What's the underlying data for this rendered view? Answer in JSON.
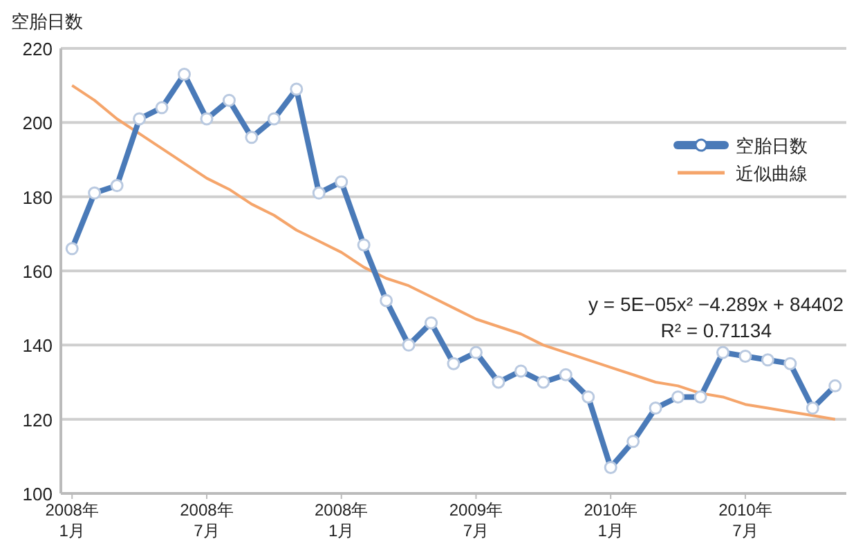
{
  "chart_data": {
    "type": "line",
    "ylabel": "空胎日数",
    "categories": [
      "2008年\n1月",
      null,
      null,
      null,
      null,
      null,
      "2008年\n7月",
      null,
      null,
      null,
      null,
      null,
      "2008年\n1月",
      null,
      null,
      null,
      null,
      null,
      "2009年\n7月",
      null,
      null,
      null,
      null,
      null,
      "2010年\n1月",
      null,
      null,
      null,
      null,
      null,
      "2010年\n7月",
      null,
      null,
      null,
      null
    ],
    "series": [
      {
        "name": "空胎日数",
        "color": "#4a7ab8",
        "marker": "circle",
        "values": [
          166,
          181,
          183,
          201,
          204,
          213,
          201,
          206,
          196,
          201,
          209,
          181,
          184,
          167,
          152,
          140,
          146,
          135,
          138,
          130,
          133,
          130,
          132,
          126,
          107,
          114,
          123,
          126,
          126,
          138,
          137,
          136,
          135,
          123,
          129
        ]
      },
      {
        "name": "近似曲線",
        "color": "#f5a56b",
        "marker": "none",
        "values": [
          210,
          206,
          201,
          197,
          193,
          189,
          185,
          182,
          178,
          175,
          171,
          168,
          165,
          161,
          158,
          156,
          153,
          150,
          147,
          145,
          143,
          140,
          138,
          136,
          134,
          132,
          130,
          129,
          127,
          126,
          124,
          123,
          122,
          121,
          120
        ]
      }
    ],
    "ylim": [
      100,
      220
    ],
    "yticks": [
      100,
      120,
      140,
      160,
      180,
      200,
      220
    ],
    "grid": "y",
    "legend": "right",
    "annotations": [
      "y = 5E−05x² −4.289x + 84402",
      "R² = 0.71134"
    ]
  }
}
